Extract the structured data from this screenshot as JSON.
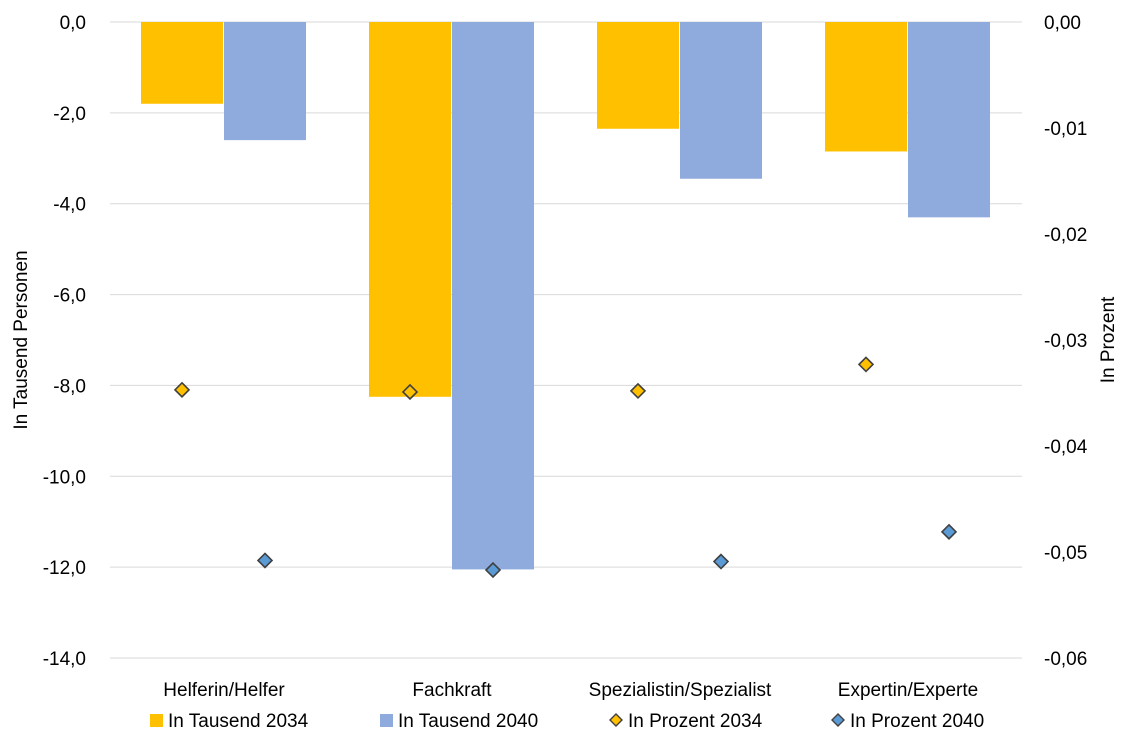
{
  "chart_data": {
    "type": "bar",
    "categories": [
      "Helferin/Helfer",
      "Fachkraft",
      "Spezialistin/Spezialist",
      "Expertin/Experte"
    ],
    "ylabel": "In Tausend Personen",
    "y2label": "In Prozent",
    "ylim": [
      -14,
      0
    ],
    "y2lim": [
      -0.06,
      0
    ],
    "yticks": [
      "-14,0",
      "-12,0",
      "-10,0",
      "-8,0",
      "-6,0",
      "-4,0",
      "-2,0",
      "0,0"
    ],
    "y2ticks": [
      "-0,06",
      "-0,05",
      "-0,04",
      "-0,03",
      "-0,02",
      "-0,01",
      "0,00"
    ],
    "grid": true,
    "legend_position": "bottom",
    "bar_series": [
      {
        "name": "In Tausend 2034",
        "color": "#FFC000",
        "axis": "left",
        "values": [
          -1.8,
          -8.25,
          -2.35,
          -2.85
        ]
      },
      {
        "name": "In Tausend 2040",
        "color": "#8FAADC",
        "axis": "left",
        "values": [
          -2.6,
          -12.05,
          -3.45,
          -4.3
        ]
      }
    ],
    "point_series": [
      {
        "name": "In Prozent 2034",
        "color": "#FFC000",
        "axis": "right",
        "values": [
          -0.0347,
          -0.0349,
          -0.0348,
          -0.0323
        ]
      },
      {
        "name": "In Prozent 2040",
        "color": "#5B9BD5",
        "axis": "right",
        "values": [
          -0.0508,
          -0.0517,
          -0.0509,
          -0.0481
        ]
      }
    ]
  }
}
